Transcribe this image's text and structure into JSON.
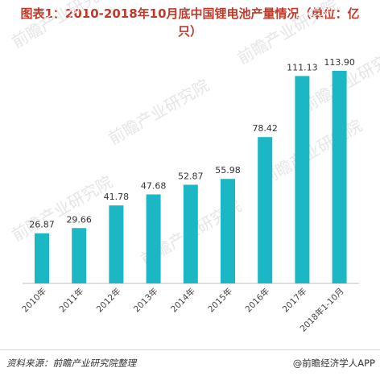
{
  "chart_data": {
    "type": "bar",
    "title": "图表1：2010-2018年10月底中国锂电池产量情况（单位：亿\n只）",
    "categories": [
      "2010年",
      "2011年",
      "2012年",
      "2013年",
      "2014年",
      "2015年",
      "2016年",
      "2017年",
      "2018年1-10月"
    ],
    "values": [
      26.87,
      29.66,
      41.78,
      47.68,
      52.87,
      55.98,
      78.42,
      111.13,
      113.9
    ],
    "value_labels": [
      "26.87",
      "29.66",
      "41.78",
      "47.68",
      "52.87",
      "55.98",
      "78.42",
      "111.13",
      "113.90"
    ],
    "ylim": [
      0,
      120
    ],
    "grid": false,
    "bar_color": "#1bb7c4"
  },
  "footer": {
    "source": "资料来源：前瞻产业研究院整理",
    "brand": "@前瞻经济学人APP"
  },
  "watermark": {
    "text": "前瞻产业研究院",
    "color": "#e6e6e6"
  }
}
